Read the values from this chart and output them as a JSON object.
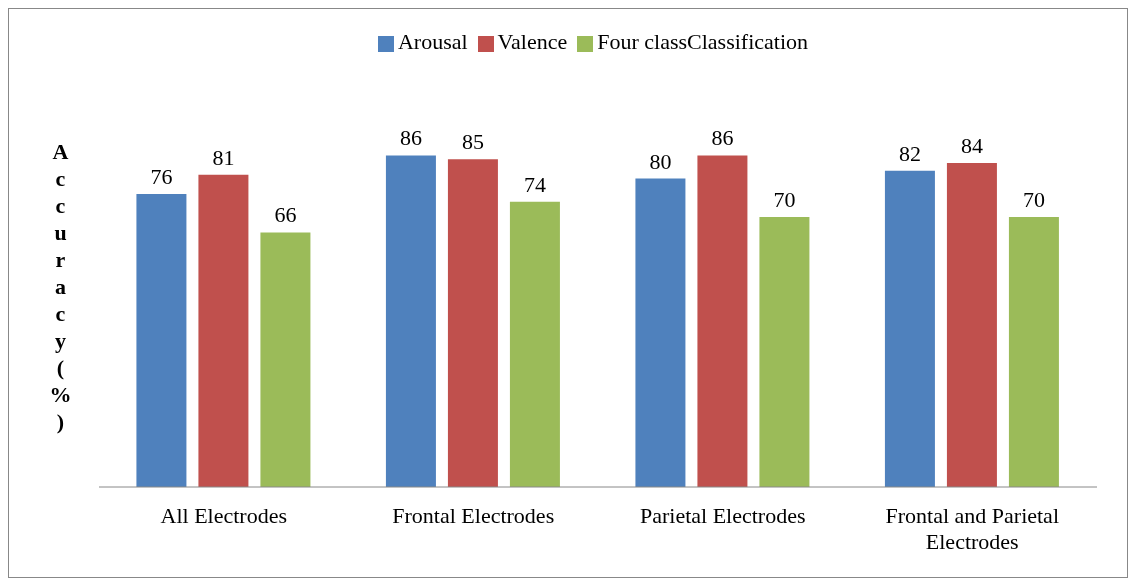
{
  "chart_data": {
    "type": "bar",
    "ylabel": "Accuracy(%)",
    "categories": [
      "All Electrodes",
      "Frontal Electrodes",
      "Parietal Electrodes",
      "Frontal and Parietal Electrodes"
    ],
    "series": [
      {
        "name": "Arousal",
        "color": "#4f81bd",
        "values": [
          76,
          86,
          80,
          82
        ]
      },
      {
        "name": "Valence",
        "color": "#c0504d",
        "values": [
          81,
          85,
          86,
          84
        ]
      },
      {
        "name": "Four classClassification",
        "color": "#9bbb59",
        "values": [
          66,
          74,
          70,
          70
        ]
      }
    ],
    "data_labels": true,
    "legend": "top",
    "grid": false
  }
}
